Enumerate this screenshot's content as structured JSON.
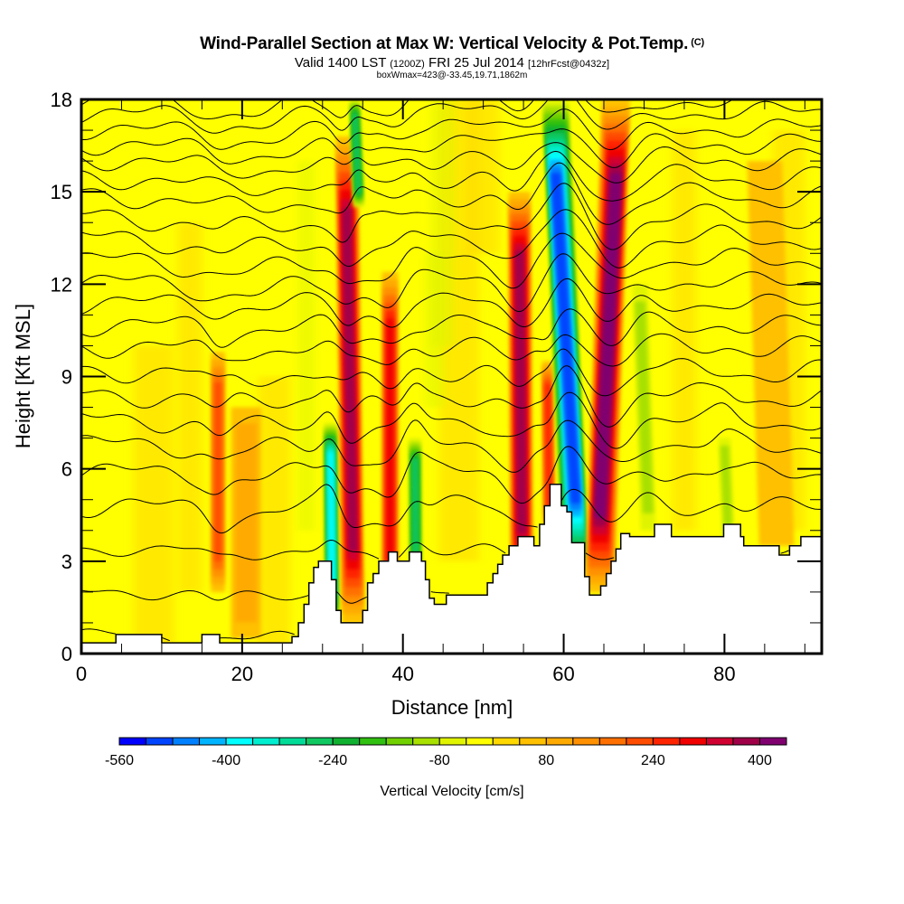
{
  "header": {
    "title": "Wind-Parallel Section at Max W: Vertical Velocity & Pot.Temp.",
    "copyright_mark": "(C)",
    "valid_prefix": "Valid 1400 LST",
    "valid_utc": "(1200Z)",
    "valid_date": "FRI 25 Jul 2014",
    "forecast_info": "[12hrFcst@0432z]",
    "box_info": "boxWmax=423@-33.45,19.71,1862m"
  },
  "chart_data": {
    "type": "heatmap",
    "title": "Wind-Parallel Section at Max W: Vertical Velocity & Pot.Temp.",
    "xlabel": "Distance [nm]",
    "ylabel": "Height [Kft MSL]",
    "xlim": [
      0,
      92.1
    ],
    "ylim": [
      0,
      18
    ],
    "x_ticks": [
      0,
      20,
      40,
      60,
      80
    ],
    "x_tick_labels": [
      "0",
      "20",
      "40",
      "60",
      "80"
    ],
    "x_minor_step": 5,
    "y_ticks": [
      0,
      3,
      6,
      9,
      12,
      15,
      18
    ],
    "y_tick_labels": [
      "0",
      "3",
      "6",
      "9",
      "12",
      "15",
      "18"
    ],
    "y_minor_step": 1,
    "background_value": -20,
    "colorbar": {
      "title": "Vertical Velocity [cm/s]",
      "min": -560,
      "max": 440,
      "step": 40,
      "tick_values": [
        -560,
        -400,
        -240,
        -80,
        80,
        240,
        400
      ],
      "tick_labels": [
        "-560",
        "-400",
        "-240",
        "-80",
        "80",
        "240",
        "400"
      ],
      "colors": [
        "#0000ff",
        "#0044ff",
        "#0080ff",
        "#00b4ff",
        "#00ffff",
        "#00eed0",
        "#00dc98",
        "#10c860",
        "#10b030",
        "#30c010",
        "#70d000",
        "#a8e000",
        "#e0f400",
        "#ffff00",
        "#ffd800",
        "#ffc000",
        "#ffaa00",
        "#ff9000",
        "#ff7000",
        "#ff4c00",
        "#ff2400",
        "#f00000",
        "#d00030",
        "#a00048",
        "#800070"
      ]
    },
    "features": [
      {
        "name": "updraft",
        "x_bottom": 17.0,
        "x_top": 17.0,
        "y_bottom": 2.0,
        "y_top": 9.8,
        "value": 200,
        "width": 1.4
      },
      {
        "name": "weak-updraft",
        "x_bottom": 20.5,
        "x_top": 20.5,
        "y_bottom": 0.5,
        "y_top": 8.0,
        "value": 80,
        "width": 3.0
      },
      {
        "name": "downdraft",
        "x_bottom": 31.2,
        "x_top": 31.0,
        "y_bottom": 1.0,
        "y_top": 7.5,
        "value": -360,
        "width": 1.3
      },
      {
        "name": "updraft",
        "x_bottom": 33.8,
        "x_top": 33.0,
        "y_bottom": 1.0,
        "y_top": 16.8,
        "value": 360,
        "width": 2.2
      },
      {
        "name": "downdraft",
        "x_bottom": 34.5,
        "x_top": 34.0,
        "y_bottom": 14.5,
        "y_top": 18.0,
        "value": -240,
        "width": 1.0
      },
      {
        "name": "updraft",
        "x_bottom": 38.4,
        "x_top": 38.4,
        "y_bottom": 1.5,
        "y_top": 12.4,
        "value": 280,
        "width": 1.6
      },
      {
        "name": "downdraft",
        "x_bottom": 41.6,
        "x_top": 41.5,
        "y_bottom": 2.0,
        "y_top": 7.0,
        "value": -260,
        "width": 1.2
      },
      {
        "name": "updraft",
        "x_bottom": 54.8,
        "x_top": 54.5,
        "y_bottom": 2.0,
        "y_top": 15.0,
        "value": 360,
        "width": 2.2
      },
      {
        "name": "updraft",
        "x_bottom": 58.2,
        "x_top": 58.0,
        "y_bottom": 4.0,
        "y_top": 9.5,
        "value": 260,
        "width": 1.1
      },
      {
        "name": "downdraft",
        "x_bottom": 61.5,
        "x_top": 59.0,
        "y_bottom": 2.5,
        "y_top": 18.0,
        "value": -480,
        "width": 2.6
      },
      {
        "name": "updraft",
        "x_bottom": 64.5,
        "x_top": 66.5,
        "y_bottom": 2.0,
        "y_top": 18.0,
        "value": 420,
        "width": 2.8
      },
      {
        "name": "weak-downdraft",
        "x_bottom": 70.5,
        "x_top": 69.5,
        "y_bottom": 4.0,
        "y_top": 12.0,
        "value": -100,
        "width": 1.5
      },
      {
        "name": "weak-downdraft",
        "x_bottom": 80.5,
        "x_top": 80.0,
        "y_bottom": 3.5,
        "y_top": 7.0,
        "value": -100,
        "width": 1.2
      },
      {
        "name": "weak-updraft",
        "x_bottom": 86.5,
        "x_top": 85.0,
        "y_bottom": 3.5,
        "y_top": 16.0,
        "value": 60,
        "width": 3.5
      }
    ],
    "terrain_profile": [
      [
        0,
        0.35
      ],
      [
        4.3,
        0.35
      ],
      [
        4.3,
        0.62
      ],
      [
        10.0,
        0.62
      ],
      [
        10.0,
        0.35
      ],
      [
        15.0,
        0.35
      ],
      [
        15.0,
        0.62
      ],
      [
        17.2,
        0.62
      ],
      [
        17.2,
        0.35
      ],
      [
        26.2,
        0.35
      ],
      [
        26.2,
        0.55
      ],
      [
        27.0,
        0.55
      ],
      [
        27.0,
        1.0
      ],
      [
        27.7,
        1.0
      ],
      [
        27.7,
        1.6
      ],
      [
        28.3,
        1.6
      ],
      [
        28.3,
        2.3
      ],
      [
        28.9,
        2.3
      ],
      [
        28.9,
        2.8
      ],
      [
        29.5,
        2.8
      ],
      [
        29.5,
        3.0
      ],
      [
        31.1,
        3.0
      ],
      [
        31.1,
        2.4
      ],
      [
        31.7,
        2.4
      ],
      [
        31.7,
        1.4
      ],
      [
        32.3,
        1.4
      ],
      [
        32.3,
        1.0
      ],
      [
        35.0,
        1.0
      ],
      [
        35.0,
        1.4
      ],
      [
        35.6,
        1.4
      ],
      [
        35.6,
        2.3
      ],
      [
        36.3,
        2.3
      ],
      [
        36.3,
        2.6
      ],
      [
        37.0,
        2.6
      ],
      [
        37.0,
        3.0
      ],
      [
        38.2,
        3.0
      ],
      [
        38.2,
        3.3
      ],
      [
        39.3,
        3.3
      ],
      [
        39.3,
        3.0
      ],
      [
        40.8,
        3.0
      ],
      [
        40.8,
        3.3
      ],
      [
        42.3,
        3.3
      ],
      [
        42.3,
        3.0
      ],
      [
        42.8,
        3.0
      ],
      [
        42.8,
        2.4
      ],
      [
        43.3,
        2.4
      ],
      [
        43.3,
        1.8
      ],
      [
        43.9,
        1.8
      ],
      [
        43.9,
        1.6
      ],
      [
        45.4,
        1.6
      ],
      [
        45.4,
        1.9
      ],
      [
        50.5,
        1.9
      ],
      [
        50.5,
        2.3
      ],
      [
        51.2,
        2.3
      ],
      [
        51.2,
        2.6
      ],
      [
        51.8,
        2.6
      ],
      [
        51.8,
        2.9
      ],
      [
        52.4,
        2.9
      ],
      [
        52.4,
        3.2
      ],
      [
        53.2,
        3.2
      ],
      [
        53.2,
        3.5
      ],
      [
        54.3,
        3.5
      ],
      [
        54.3,
        3.8
      ],
      [
        56.3,
        3.8
      ],
      [
        56.3,
        3.5
      ],
      [
        57.0,
        3.5
      ],
      [
        57.0,
        4.2
      ],
      [
        57.6,
        4.2
      ],
      [
        57.6,
        4.8
      ],
      [
        58.3,
        4.8
      ],
      [
        58.3,
        5.5
      ],
      [
        59.7,
        5.5
      ],
      [
        59.7,
        4.8
      ],
      [
        60.4,
        4.8
      ],
      [
        60.4,
        4.6
      ],
      [
        61.0,
        4.6
      ],
      [
        61.0,
        3.6
      ],
      [
        62.6,
        3.6
      ],
      [
        62.6,
        2.5
      ],
      [
        63.2,
        2.5
      ],
      [
        63.2,
        1.9
      ],
      [
        64.6,
        1.9
      ],
      [
        64.6,
        2.2
      ],
      [
        65.3,
        2.2
      ],
      [
        65.3,
        2.6
      ],
      [
        65.9,
        2.6
      ],
      [
        65.9,
        3.0
      ],
      [
        66.5,
        3.0
      ],
      [
        66.5,
        3.4
      ],
      [
        67.1,
        3.4
      ],
      [
        67.1,
        3.9
      ],
      [
        68.2,
        3.9
      ],
      [
        68.2,
        3.8
      ],
      [
        71.3,
        3.8
      ],
      [
        71.3,
        4.2
      ],
      [
        73.4,
        4.2
      ],
      [
        73.4,
        3.8
      ],
      [
        79.9,
        3.8
      ],
      [
        79.9,
        4.2
      ],
      [
        82.0,
        4.2
      ],
      [
        82.0,
        3.8
      ],
      [
        82.4,
        3.8
      ],
      [
        82.4,
        3.5
      ],
      [
        86.8,
        3.5
      ],
      [
        86.8,
        3.2
      ],
      [
        88.1,
        3.2
      ],
      [
        88.1,
        3.5
      ],
      [
        89.5,
        3.5
      ],
      [
        89.5,
        3.8
      ],
      [
        92.1,
        3.8
      ]
    ],
    "contours": {
      "variable": "potential temperature",
      "levels": 27,
      "base_heights": [
        0.6,
        2.0,
        3.4,
        4.8,
        5.9,
        6.8,
        7.6,
        8.4,
        9.2,
        10.0,
        10.7,
        11.4,
        12.1,
        12.8,
        13.5,
        14.2,
        14.9,
        15.5,
        16.1,
        16.6,
        17.1,
        17.6,
        18.0
      ]
    }
  }
}
